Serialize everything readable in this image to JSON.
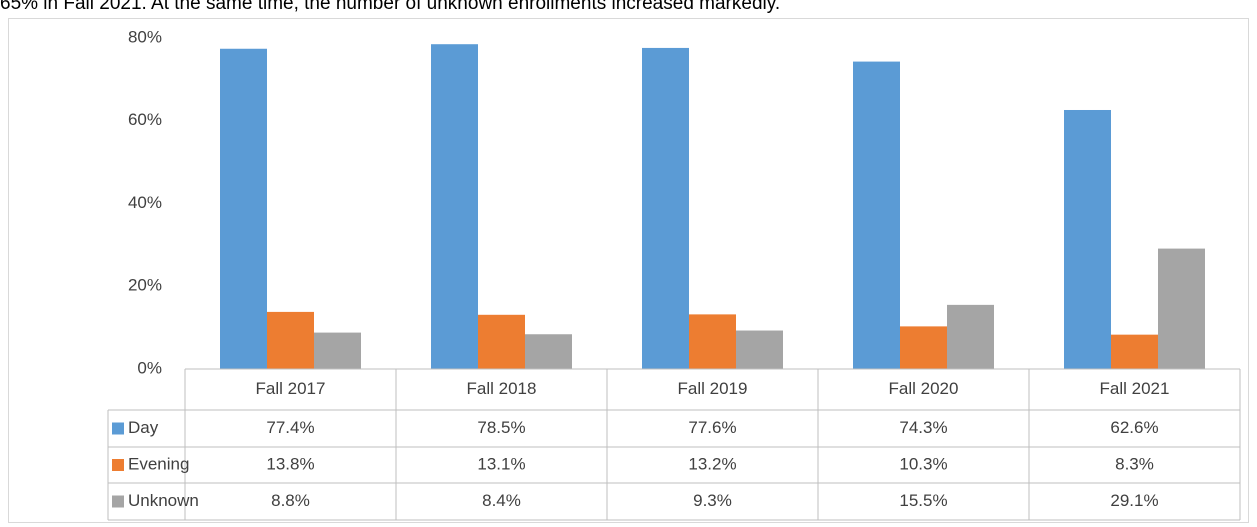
{
  "caption": "65% in Fall 2021. At the same time, the number of unknown enrollments increased markedly.",
  "chart_data": {
    "type": "bar",
    "categories": [
      "Fall 2017",
      "Fall 2018",
      "Fall 2019",
      "Fall 2020",
      "Fall 2021"
    ],
    "series": [
      {
        "name": "Day",
        "color": "#5b9bd5",
        "values": [
          77.4,
          78.5,
          77.6,
          74.3,
          62.6
        ],
        "value_labels": [
          "77.4%",
          "78.5%",
          "77.6%",
          "74.3%",
          "62.6%"
        ]
      },
      {
        "name": "Evening",
        "color": "#ed7d31",
        "values": [
          13.8,
          13.1,
          13.2,
          10.3,
          8.3
        ],
        "value_labels": [
          "13.8%",
          "13.1%",
          "13.2%",
          "10.3%",
          "8.3%"
        ]
      },
      {
        "name": "Unknown",
        "color": "#a5a5a5",
        "values": [
          8.8,
          8.4,
          9.3,
          15.5,
          29.1
        ],
        "value_labels": [
          "8.8%",
          "8.4%",
          "9.3%",
          "15.5%",
          "29.1%"
        ]
      }
    ],
    "ylim": [
      0,
      80
    ],
    "yticks": [
      {
        "value": 0,
        "label": "0%"
      },
      {
        "value": 20,
        "label": "20%"
      },
      {
        "value": 40,
        "label": "40%"
      },
      {
        "value": 60,
        "label": "60%"
      },
      {
        "value": 80,
        "label": "80%"
      }
    ],
    "grid": false
  }
}
